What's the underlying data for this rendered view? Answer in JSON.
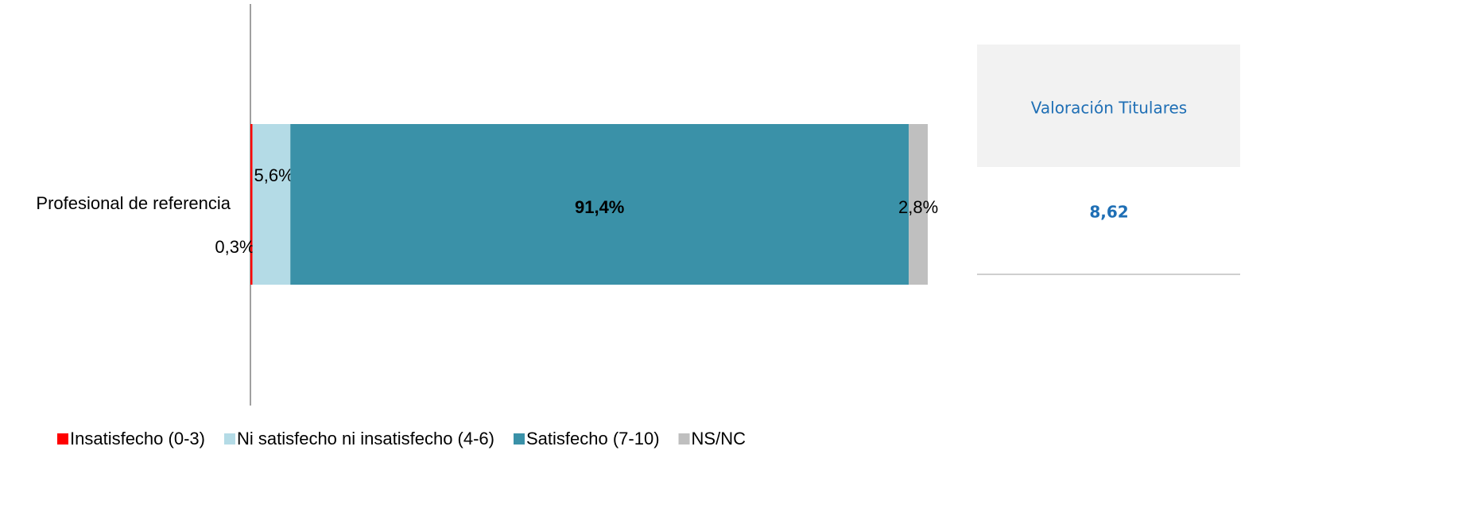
{
  "chart_data": {
    "type": "bar",
    "orientation": "horizontal",
    "stacked": true,
    "categories": [
      "Profesional de referencia"
    ],
    "series": [
      {
        "name": "Insatisfecho (0-3)",
        "color": "#ff0000",
        "values": [
          0.3
        ],
        "value_labels": [
          "0,3%"
        ]
      },
      {
        "name": "Ni satisfecho ni insatisfecho (4-6)",
        "color": "#b4dbe6",
        "values": [
          5.6
        ],
        "value_labels": [
          "5,6%"
        ]
      },
      {
        "name": "Satisfecho (7-10)",
        "color": "#3a91a8",
        "values": [
          91.4
        ],
        "value_labels": [
          "91,4%"
        ]
      },
      {
        "name": "NS/NC",
        "color": "#bfbfbf",
        "values": [
          2.8
        ],
        "value_labels": [
          "2,8%"
        ]
      }
    ],
    "legend": "bottom"
  },
  "side_table": {
    "header": "Valoración Titulares",
    "value": "8,62"
  }
}
